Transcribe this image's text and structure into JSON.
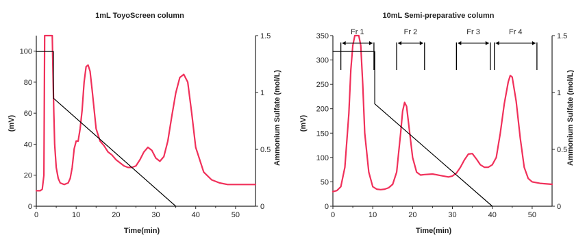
{
  "colors": {
    "trace": "#f0305a",
    "gradient": "#000000",
    "axis": "#222222"
  },
  "chart_data": [
    {
      "type": "line",
      "title": "1mL ToyoScreen column",
      "xlabel": "Time(min)",
      "ylabel": "(mV)",
      "y2label": "Ammonium Sulfate (mol/L)",
      "xlim": [
        0,
        55
      ],
      "ylim": [
        0,
        110
      ],
      "y2lim": [
        0,
        1.5
      ],
      "xticks": [
        0,
        10,
        20,
        30,
        40,
        50
      ],
      "yticks": [
        0,
        20,
        40,
        60,
        80,
        100
      ],
      "y2ticks": [
        0,
        0.5,
        1,
        1.5
      ],
      "y2ticklabels": [
        "0",
        "0.5",
        "1",
        "1.5"
      ],
      "series": [
        {
          "axis": "left",
          "color": "#f0305a",
          "x": [
            0,
            1,
            1.5,
            1.9,
            2,
            2.1,
            2.3,
            3.8,
            4,
            4.2,
            4.4,
            4.6,
            5,
            5.5,
            6,
            7,
            8,
            8.5,
            9,
            9.5,
            10,
            10.5,
            11,
            11.5,
            12,
            12.5,
            13,
            13.5,
            14,
            15,
            16,
            17,
            18,
            19,
            20,
            21,
            22,
            23,
            24,
            25,
            26,
            27,
            28,
            29,
            30,
            31,
            32,
            33,
            34,
            35,
            36,
            37,
            38,
            39,
            40,
            42,
            44,
            46,
            48,
            50,
            55
          ],
          "y": [
            10,
            10,
            11,
            20,
            60,
            110,
            110,
            110,
            110,
            85,
            60,
            40,
            25,
            18,
            15,
            14,
            15,
            18,
            25,
            37,
            42,
            42,
            50,
            62,
            80,
            90,
            91,
            87,
            75,
            50,
            42,
            39,
            35,
            33,
            30,
            28,
            26,
            25,
            25,
            26,
            30,
            35,
            38,
            36,
            31,
            29,
            32,
            42,
            58,
            73,
            83,
            85,
            80,
            60,
            38,
            22,
            17,
            15,
            14,
            14,
            14
          ]
        },
        {
          "axis": "right",
          "color": "#000000",
          "x": [
            0,
            4.3,
            4.3,
            35
          ],
          "y": [
            1.36,
            1.36,
            0.95,
            0
          ]
        }
      ]
    },
    {
      "type": "line",
      "title": "10mL Semi-preparative column",
      "xlabel": "Time(min)",
      "ylabel": "(mV)",
      "y2label": "Ammonium Sulfate (mol/L)",
      "xlim": [
        0,
        55
      ],
      "ylim": [
        0,
        350
      ],
      "y2lim": [
        0,
        1.5
      ],
      "xticks": [
        0,
        10,
        20,
        30,
        40,
        50
      ],
      "yticks": [
        0,
        50,
        100,
        150,
        200,
        250,
        300,
        350
      ],
      "y2ticks": [
        0,
        0.5,
        1,
        1.5
      ],
      "y2ticklabels": [
        "0",
        "0.5",
        "1",
        "1.5"
      ],
      "series": [
        {
          "axis": "left",
          "color": "#f0305a",
          "x": [
            0,
            1,
            2,
            3,
            4,
            4.5,
            5,
            5.5,
            6,
            6.5,
            7,
            7.5,
            8,
            9,
            10,
            11,
            12,
            13,
            14,
            15,
            16,
            17,
            17.5,
            18,
            18.5,
            19,
            20,
            21,
            22,
            23,
            25,
            27,
            29,
            30,
            31,
            32,
            33,
            34,
            35,
            36,
            37,
            38,
            39,
            40,
            41,
            42,
            43,
            44,
            44.5,
            45,
            46,
            47,
            48,
            49,
            50,
            52,
            55
          ],
          "y": [
            30,
            32,
            40,
            80,
            190,
            280,
            330,
            350,
            350,
            350,
            330,
            250,
            150,
            70,
            40,
            35,
            34,
            35,
            38,
            45,
            70,
            150,
            195,
            213,
            205,
            170,
            100,
            70,
            64,
            65,
            66,
            63,
            60,
            62,
            68,
            80,
            95,
            107,
            108,
            97,
            85,
            80,
            80,
            85,
            100,
            150,
            210,
            255,
            268,
            265,
            215,
            140,
            80,
            57,
            50,
            47,
            45
          ]
        },
        {
          "axis": "right",
          "color": "#000000",
          "x": [
            0,
            10.5,
            10.5,
            40
          ],
          "y": [
            1.36,
            1.36,
            0.9,
            0
          ]
        }
      ],
      "fractions": [
        {
          "label": "Fr 1",
          "x": [
            2,
            10.3
          ]
        },
        {
          "label": "Fr 2",
          "x": [
            16,
            23
          ]
        },
        {
          "label": "Fr 3",
          "x": [
            31,
            39.5
          ]
        },
        {
          "label": "Fr 4",
          "x": [
            40.5,
            51.2
          ]
        }
      ]
    }
  ]
}
